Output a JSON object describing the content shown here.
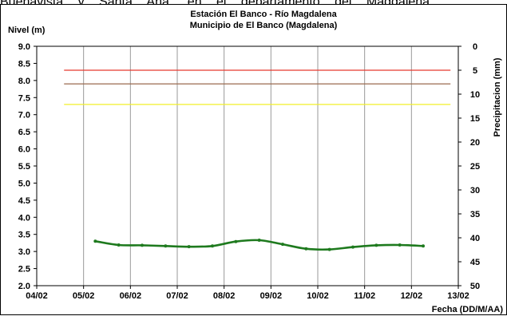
{
  "top_text": "Buenavista y Santa Ana, en el departamento del Magdalena",
  "chart_data": {
    "type": "line",
    "title": "Estación El Banco - Río Magdalena",
    "subtitle": "Municipio de El Banco (Magdalena)",
    "ylabel": "Nivel (m)",
    "y2label": "Precipitacion (mm)",
    "xlabel": "Fecha (DD/M/AA)",
    "ylim": [
      2.0,
      9.0
    ],
    "y2lim": [
      0,
      50
    ],
    "y2_reversed": true,
    "xlim": [
      "04/02",
      "13/02"
    ],
    "grid": "vertical",
    "x_ticks": [
      "04/02",
      "05/02",
      "06/02",
      "07/02",
      "08/02",
      "09/02",
      "10/02",
      "11/02",
      "12/02",
      "13/02"
    ],
    "y_ticks": [
      "2.0",
      "2.5",
      "3.0",
      "3.5",
      "4.0",
      "4.5",
      "5.0",
      "5.5",
      "6.0",
      "6.5",
      "7.0",
      "7.5",
      "8.0",
      "8.5",
      "9.0"
    ],
    "y2_ticks": [
      "0",
      "5",
      "10",
      "15",
      "20",
      "25",
      "30",
      "35",
      "40",
      "45",
      "50"
    ],
    "thresholds": [
      {
        "value": 8.3,
        "color": "#e8392f"
      },
      {
        "value": 7.9,
        "color": "#9b6a4f"
      },
      {
        "value": 7.3,
        "color": "#f2ef2a"
      }
    ],
    "threshold_span": [
      "04/02 14:00",
      "12/02 20:00"
    ],
    "series": [
      {
        "color": "#1e7a1e",
        "x": [
          "05/02 06:00",
          "05/02 18:00",
          "06/02 06:00",
          "06/02 18:00",
          "07/02 06:00",
          "07/02 18:00",
          "08/02 06:00",
          "08/02 18:00",
          "09/02 06:00",
          "09/02 18:00",
          "10/02 06:00",
          "10/02 18:00",
          "11/02 06:00",
          "11/02 18:00",
          "12/02 06:00"
        ],
        "values": [
          3.3,
          3.19,
          3.18,
          3.16,
          3.14,
          3.16,
          3.29,
          3.33,
          3.21,
          3.08,
          3.06,
          3.13,
          3.18,
          3.19,
          3.16
        ]
      }
    ]
  }
}
